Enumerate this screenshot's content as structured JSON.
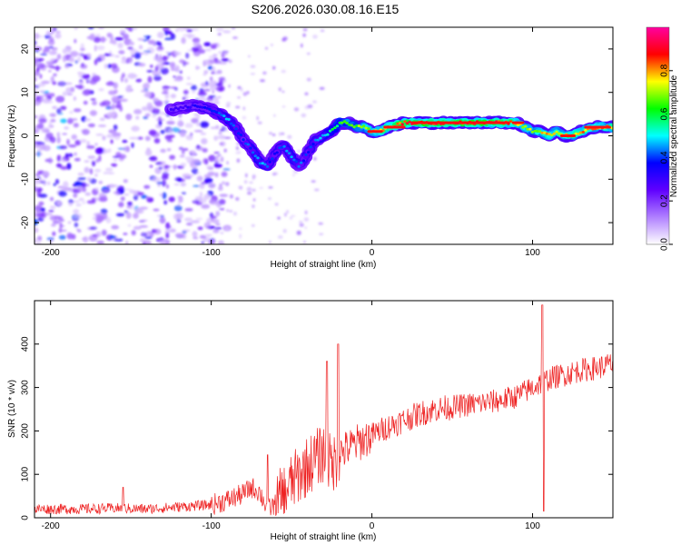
{
  "title": "S206.2026.030.08.16.E15",
  "chart_data": [
    {
      "type": "heatmap",
      "title": "S206.2026.030.08.16.E15",
      "xlabel": "Height of straight line (km)",
      "ylabel": "Frequency (Hz)",
      "xlim": [
        -210,
        150
      ],
      "ylim": [
        -25,
        25
      ],
      "xticks": [
        -200,
        -100,
        0,
        100
      ],
      "yticks": [
        -20,
        -10,
        0,
        10,
        20
      ],
      "colorbar": {
        "label": "Normalized spectral amplitude",
        "range": [
          0,
          1
        ],
        "ticks": [
          "0.0",
          "0.2",
          "0.4",
          "0.6",
          "0.8"
        ],
        "colors": [
          "#ffffff",
          "#b080ff",
          "#6000ff",
          "#0000ff",
          "#00ffff",
          "#00ff00",
          "#ffff00",
          "#ff0000",
          "#ff00a0"
        ]
      },
      "ridge": {
        "x": [
          -125,
          -110,
          -100,
          -95,
          -90,
          -85,
          -80,
          -75,
          -70,
          -65,
          -60,
          -55,
          -50,
          -45,
          -40,
          -35,
          -30,
          -25,
          -20,
          -15,
          -10,
          -5,
          0,
          5,
          10,
          20,
          30,
          40,
          60,
          80,
          85,
          90,
          95,
          100,
          105,
          110,
          115,
          120,
          125,
          130,
          140,
          150
        ],
        "y": [
          6,
          7,
          6,
          5,
          4,
          2,
          -1,
          -3,
          -6,
          -7,
          -4,
          -2,
          -5,
          -7,
          -4,
          -1,
          0,
          1,
          3,
          3,
          2,
          2,
          1,
          1,
          2,
          3,
          3,
          3,
          3,
          3,
          3,
          3,
          2,
          1,
          1,
          0,
          1,
          0,
          0,
          1,
          2,
          2
        ],
        "amplitude": [
          0.3,
          0.35,
          0.4,
          0.45,
          0.5,
          0.45,
          0.4,
          0.45,
          0.5,
          0.45,
          0.4,
          0.45,
          0.5,
          0.45,
          0.4,
          0.45,
          0.5,
          0.6,
          0.65,
          0.7,
          0.7,
          0.75,
          0.8,
          0.85,
          0.9,
          0.95,
          0.95,
          0.95,
          0.95,
          0.95,
          0.9,
          0.85,
          0.8,
          0.75,
          0.8,
          0.85,
          0.8,
          0.85,
          0.85,
          0.85,
          0.85,
          0.85
        ]
      }
    },
    {
      "type": "line",
      "xlabel": "Height of straight line (km)",
      "ylabel": "SNR (10 * v/v)",
      "xlim": [
        -210,
        150
      ],
      "ylim": [
        0,
        500
      ],
      "xticks": [
        -200,
        -100,
        0,
        100
      ],
      "yticks": [
        0,
        100,
        200,
        300,
        400
      ],
      "color": "#ee2222",
      "x": [
        -210,
        -200,
        -180,
        -160,
        -140,
        -120,
        -100,
        -90,
        -80,
        -75,
        -70,
        -65,
        -60,
        -50,
        -40,
        -30,
        -25,
        -20,
        -10,
        0,
        10,
        20,
        30,
        40,
        50,
        60,
        70,
        80,
        90,
        100,
        105,
        110,
        120,
        130,
        140,
        150
      ],
      "y": [
        20,
        20,
        20,
        22,
        20,
        25,
        30,
        40,
        55,
        70,
        60,
        20,
        30,
        80,
        120,
        150,
        120,
        150,
        170,
        190,
        210,
        225,
        240,
        250,
        255,
        260,
        265,
        270,
        280,
        300,
        310,
        320,
        330,
        340,
        345,
        355
      ],
      "spikes": [
        {
          "x": -155,
          "y": 70
        },
        {
          "x": -65,
          "y": 145
        },
        {
          "x": -28,
          "y": 360
        },
        {
          "x": -21,
          "y": 400
        },
        {
          "x": 106,
          "y": 490
        },
        {
          "x": 107,
          "y": 15
        }
      ]
    }
  ]
}
